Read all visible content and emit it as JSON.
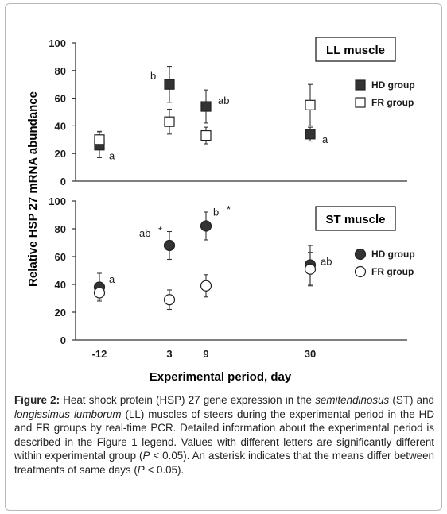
{
  "chart_data": {
    "type": "scatter",
    "ylabel": "Relative HSP 27 mRNA abundance",
    "xlabel": "Experimental period, day",
    "x_categories": [
      "-12",
      "3",
      "9",
      "30"
    ],
    "ylim": [
      0,
      100
    ],
    "yticks": [
      "0",
      "20",
      "40",
      "60",
      "80",
      "100"
    ],
    "panels": [
      {
        "title": "LL muscle",
        "marker": "square",
        "legend": [
          "HD group",
          "FR group"
        ],
        "series": [
          {
            "name": "HD group",
            "color": "#333333",
            "x": [
              "-12",
              "3",
              "9",
              "30"
            ],
            "y": [
              26,
              70,
              54,
              34
            ],
            "err": [
              9,
              13,
              12,
              5
            ]
          },
          {
            "name": "FR group",
            "color": "#ffffff",
            "x": [
              "-12",
              "3",
              "9",
              "30"
            ],
            "y": [
              30,
              43,
              33,
              55
            ],
            "err": [
              6,
              9,
              6,
              15
            ]
          }
        ],
        "annotations": [
          {
            "x": "-12",
            "y": 21,
            "text": "a"
          },
          {
            "x": "3",
            "y": 76,
            "text": "b"
          },
          {
            "x": "9",
            "y": 58,
            "text": "ab"
          },
          {
            "x": "30",
            "y": 31,
            "text": "a"
          }
        ]
      },
      {
        "title": "ST muscle",
        "marker": "circle",
        "legend": [
          "HD group",
          "FR group"
        ],
        "series": [
          {
            "name": "HD group",
            "color": "#333333",
            "x": [
              "-12",
              "3",
              "9",
              "30"
            ],
            "y": [
              38,
              68,
              82,
              54
            ],
            "err": [
              10,
              10,
              10,
              14
            ]
          },
          {
            "name": "FR group",
            "color": "#ffffff",
            "x": [
              "-12",
              "3",
              "9",
              "30"
            ],
            "y": [
              34,
              29,
              39,
              51
            ],
            "err": [
              5,
              7,
              8,
              12
            ]
          }
        ],
        "annotations": [
          {
            "x": "-12",
            "y": 44,
            "text": "a"
          },
          {
            "x": "3",
            "y": 75,
            "text": "ab"
          },
          {
            "x": "3",
            "y": 77,
            "text": "*"
          },
          {
            "x": "9",
            "y": 89,
            "text": "b"
          },
          {
            "x": "9",
            "y": 91,
            "text": "*"
          },
          {
            "x": "30",
            "y": 58,
            "text": "ab"
          }
        ]
      }
    ]
  },
  "caption": {
    "label": "Figure 2:",
    "text_1": " Heat shock protein (HSP) 27 gene expression in the ",
    "italic_1": "semitendinosus",
    "text_2": " (ST) and ",
    "italic_2": "longissimus lumborum",
    "text_3": " (LL) muscles of steers during the experimental period in the HD and FR groups by real-time PCR. Detailed information about the experimental period is described in the Figure 1 legend. Values with different letters are significantly different within experimental group (",
    "italic_3": "P",
    "text_4": " < 0.05). An asterisk indicates that the means differ between treatments of same days (",
    "italic_4": "P",
    "text_5": " < 0.05)."
  }
}
